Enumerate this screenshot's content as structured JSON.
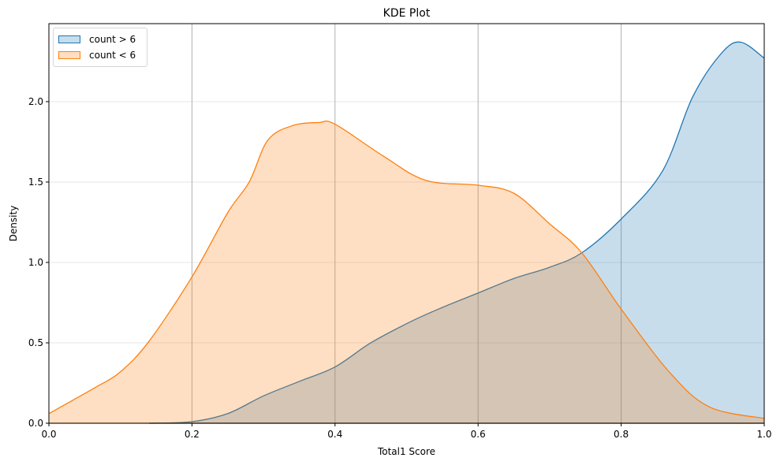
{
  "chart_data": {
    "type": "area",
    "title": "KDE Plot",
    "xlabel": "Total1 Score",
    "ylabel": "Density",
    "xlim": [
      0.0,
      1.0
    ],
    "ylim": [
      0.0,
      2.485
    ],
    "xticks": [
      "0.0",
      "0.2",
      "0.4",
      "0.6",
      "0.8",
      "1.0"
    ],
    "yticks": [
      "0.0",
      "0.5",
      "1.0",
      "1.5",
      "2.0"
    ],
    "grid": {
      "x": true,
      "y": true
    },
    "legend_position": "upper left",
    "series": [
      {
        "name": "count > 6",
        "color": "#1f77b4",
        "fill": "#1f77b4",
        "fill_alpha": 0.25,
        "x": [
          0.14,
          0.2,
          0.25,
          0.3,
          0.35,
          0.4,
          0.45,
          0.505,
          0.55,
          0.6,
          0.65,
          0.7,
          0.745,
          0.8,
          0.858,
          0.9,
          0.94,
          0.967,
          1.0
        ],
        "y": [
          0.0,
          0.01,
          0.06,
          0.17,
          0.26,
          0.35,
          0.5,
          0.63,
          0.72,
          0.81,
          0.9,
          0.97,
          1.06,
          1.27,
          1.57,
          2.03,
          2.3,
          2.37,
          2.27
        ]
      },
      {
        "name": "count < 6",
        "color": "#ff7f0e",
        "fill": "#ff7f0e",
        "fill_alpha": 0.25,
        "x": [
          0.0,
          0.064,
          0.1,
          0.14,
          0.2,
          0.25,
          0.28,
          0.306,
          0.34,
          0.377,
          0.4,
          0.468,
          0.527,
          0.6,
          0.65,
          0.7,
          0.745,
          0.8,
          0.869,
          0.924,
          1.0
        ],
        "y": [
          0.06,
          0.22,
          0.32,
          0.51,
          0.91,
          1.31,
          1.5,
          1.76,
          1.85,
          1.87,
          1.86,
          1.66,
          1.51,
          1.48,
          1.43,
          1.24,
          1.06,
          0.71,
          0.31,
          0.1,
          0.03
        ]
      }
    ]
  }
}
